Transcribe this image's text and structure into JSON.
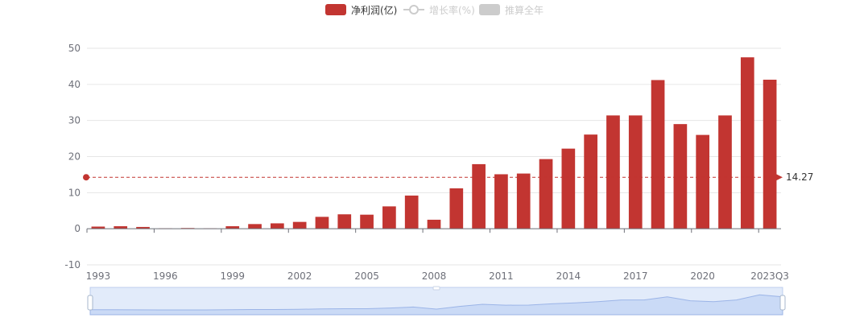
{
  "legend": {
    "bar_label": "净利润(亿)",
    "line_label": "增长率(%)",
    "estimate_label": "推算全年"
  },
  "colors": {
    "bar": "#c23531",
    "inactive": "#cccccc",
    "axis_text": "#6e7079",
    "grid": "#e6e6e6",
    "slider_fill": "#d6e2f7",
    "slider_border": "#c3d1ee",
    "slider_line": "#9fb6e6"
  },
  "chart_data": {
    "type": "bar",
    "categories": [
      "1993",
      "1994",
      "1995",
      "1996",
      "1997",
      "1998",
      "1999",
      "2000",
      "2001",
      "2002",
      "2003",
      "2004",
      "2005",
      "2006",
      "2007",
      "2008",
      "2009",
      "2010",
      "2011",
      "2012",
      "2013",
      "2014",
      "2015",
      "2016",
      "2017",
      "2018",
      "2019",
      "2020",
      "2021",
      "2022",
      "2023Q3"
    ],
    "x_tick_labels": [
      "1993",
      "1996",
      "1999",
      "2002",
      "2005",
      "2008",
      "2011",
      "2014",
      "2017",
      "2020",
      "2023Q3"
    ],
    "series": [
      {
        "name": "净利润(亿)",
        "values": [
          0.6,
          0.7,
          0.5,
          0.1,
          0.2,
          0.1,
          0.7,
          1.3,
          1.5,
          1.9,
          3.3,
          4.0,
          3.9,
          6.2,
          9.2,
          2.5,
          11.2,
          17.9,
          15.1,
          15.3,
          19.3,
          22.2,
          26.1,
          31.4,
          31.4,
          41.2,
          29.0,
          26.0,
          31.4,
          47.5,
          41.3
        ]
      }
    ],
    "ylim": [
      -10,
      50
    ],
    "y_ticks": [
      -10,
      0,
      10,
      20,
      30,
      40,
      50
    ],
    "mark_line": {
      "label": "14.27",
      "value": 14.27
    },
    "title": "",
    "xlabel": "",
    "ylabel": "",
    "grid": true,
    "legend_position": "top-center",
    "data_zoom": {
      "start": 0,
      "end": 100
    }
  }
}
